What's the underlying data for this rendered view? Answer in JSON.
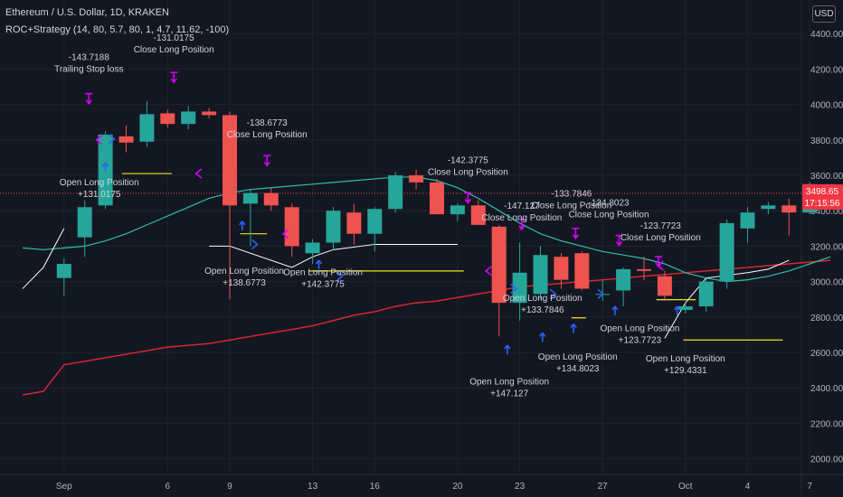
{
  "header": {
    "title": "Ethereum / U.S. Dollar, 1D, KRAKEN",
    "strategy": "ROC+Strategy (14, 80, 5.7, 80, 1, 4.7, 11.62, -100)",
    "currency_button": "USD"
  },
  "price_tags": {
    "last_price": "3498.65",
    "countdown": "17:15:56"
  },
  "colors": {
    "background": "#131722",
    "grid": "#1e222d",
    "text": "#b2b5be",
    "up": "#26a69a",
    "down": "#ef5350",
    "sma_long": "#e0282f",
    "sma_short": "#2bc0a8",
    "stop_line": "#ffffff",
    "level_line": "#f1e11c",
    "buy_arrow": "#2962ff",
    "sell_arrow": "#d500f9",
    "current_price": "#f23645"
  },
  "chart_data": {
    "type": "candlestick",
    "y_axis": {
      "ticks": [
        2000,
        2200,
        2400,
        2600,
        2800,
        3000,
        3200,
        3400,
        3600,
        3800,
        4000,
        4200,
        4400
      ],
      "tick_labels": [
        "2000.00",
        "2200.00",
        "2400.00",
        "2600.00",
        "2800.00",
        "3000.00",
        "3200.00",
        "3400.00",
        "3600.00",
        "3800.00",
        "4000.00",
        "4200.00",
        "4400.00"
      ],
      "ylim": [
        1930,
        4520
      ]
    },
    "x_axis": {
      "tick_labels": [
        {
          "label": "Sep",
          "index": 0
        },
        {
          "label": "6",
          "index": 5
        },
        {
          "label": "9",
          "index": 8
        },
        {
          "label": "13",
          "index": 12
        },
        {
          "label": "16",
          "index": 15
        },
        {
          "label": "20",
          "index": 19
        },
        {
          "label": "23",
          "index": 22
        },
        {
          "label": "27",
          "index": 26
        },
        {
          "label": "Oct",
          "index": 30
        },
        {
          "label": "4",
          "index": 33
        },
        {
          "label": "7",
          "index": 36
        }
      ],
      "first_index": -2,
      "last_index": 37
    },
    "candles": [
      {
        "o": 3020,
        "h": 3130,
        "l": 2920,
        "c": 3100
      },
      {
        "o": 3250,
        "h": 3460,
        "l": 3140,
        "c": 3420
      },
      {
        "o": 3430,
        "h": 3850,
        "l": 3410,
        "c": 3830
      },
      {
        "o": 3820,
        "h": 3880,
        "l": 3730,
        "c": 3785
      },
      {
        "o": 3790,
        "h": 4020,
        "l": 3760,
        "c": 3945
      },
      {
        "o": 3950,
        "h": 3970,
        "l": 3870,
        "c": 3890
      },
      {
        "o": 3890,
        "h": 3990,
        "l": 3860,
        "c": 3960
      },
      {
        "o": 3960,
        "h": 3980,
        "l": 3920,
        "c": 3940
      },
      {
        "o": 3940,
        "h": 3960,
        "l": 2900,
        "c": 3430
      },
      {
        "o": 3440,
        "h": 3520,
        "l": 3200,
        "c": 3500
      },
      {
        "o": 3500,
        "h": 3530,
        "l": 3400,
        "c": 3430
      },
      {
        "o": 3420,
        "h": 3440,
        "l": 3140,
        "c": 3200
      },
      {
        "o": 3160,
        "h": 3240,
        "l": 3100,
        "c": 3220
      },
      {
        "o": 3220,
        "h": 3420,
        "l": 3180,
        "c": 3400
      },
      {
        "o": 3390,
        "h": 3440,
        "l": 3210,
        "c": 3270
      },
      {
        "o": 3270,
        "h": 3420,
        "l": 3170,
        "c": 3410
      },
      {
        "o": 3410,
        "h": 3620,
        "l": 3390,
        "c": 3600
      },
      {
        "o": 3600,
        "h": 3630,
        "l": 3520,
        "c": 3560
      },
      {
        "o": 3560,
        "h": 3580,
        "l": 3380,
        "c": 3380
      },
      {
        "o": 3380,
        "h": 3440,
        "l": 3340,
        "c": 3430
      },
      {
        "o": 3430,
        "h": 3460,
        "l": 3320,
        "c": 3320
      },
      {
        "o": 3310,
        "h": 3320,
        "l": 2690,
        "c": 2880
      },
      {
        "o": 2880,
        "h": 3220,
        "l": 2780,
        "c": 3050
      },
      {
        "o": 2930,
        "h": 3200,
        "l": 2900,
        "c": 3150
      },
      {
        "o": 3140,
        "h": 3160,
        "l": 2960,
        "c": 3010
      },
      {
        "o": 3160,
        "h": 3170,
        "l": 2950,
        "c": 2960
      },
      {
        "o": 2930,
        "h": 3010,
        "l": 2890,
        "c": 2930
      },
      {
        "o": 2950,
        "h": 3080,
        "l": 2860,
        "c": 3070
      },
      {
        "o": 3070,
        "h": 3140,
        "l": 3010,
        "c": 3060
      },
      {
        "o": 3030,
        "h": 3060,
        "l": 2890,
        "c": 2920
      },
      {
        "o": 2840,
        "h": 2880,
        "l": 2820,
        "c": 2860
      },
      {
        "o": 2860,
        "h": 3020,
        "l": 2830,
        "c": 3000
      },
      {
        "o": 3000,
        "h": 3350,
        "l": 2960,
        "c": 3330
      },
      {
        "o": 3300,
        "h": 3420,
        "l": 3220,
        "c": 3390
      },
      {
        "o": 3410,
        "h": 3450,
        "l": 3380,
        "c": 3430
      },
      {
        "o": 3430,
        "h": 3470,
        "l": 3260,
        "c": 3390
      },
      {
        "o": 3390,
        "h": 3560,
        "l": 3380,
        "c": 3550
      },
      {
        "o": 3530,
        "h": 3540,
        "l": 3490,
        "c": 3500
      }
    ],
    "moving_average_short": [
      3190,
      3200,
      3230,
      3270,
      3320,
      3370,
      3420,
      3470,
      3500,
      3520,
      3530,
      3540,
      3550,
      3560,
      3570,
      3580,
      3590,
      3590,
      3570,
      3530,
      3470,
      3400,
      3330,
      3270,
      3230,
      3200,
      3170,
      3150,
      3130,
      3100,
      3050,
      3020,
      3000,
      3010,
      3030,
      3060,
      3100,
      3140
    ],
    "moving_average_long": [
      2530,
      2550,
      2570,
      2590,
      2610,
      2630,
      2640,
      2650,
      2670,
      2690,
      2710,
      2730,
      2750,
      2780,
      2810,
      2830,
      2860,
      2880,
      2890,
      2910,
      2930,
      2950,
      2970,
      2980,
      2990,
      3000,
      3010,
      3020,
      3030,
      3040,
      3050,
      3060,
      3070,
      3080,
      3090,
      3100,
      3110,
      3120
    ],
    "trailing_stop": [
      {
        "i": -2,
        "y": 2960
      },
      {
        "i": -1,
        "y": 3080
      },
      {
        "i": 0,
        "y": 3300
      },
      {
        "i": 7,
        "y": 3200
      },
      {
        "i": 8,
        "y": 3200
      },
      {
        "i": 11,
        "y": 3080
      },
      {
        "i": 12,
        "y": 3140
      },
      {
        "i": 13,
        "y": 3180
      },
      {
        "i": 15,
        "y": 3210
      },
      {
        "i": 19,
        "y": 3210
      },
      {
        "i": 29,
        "y": 2680
      },
      {
        "i": 30,
        "y": 2880
      },
      {
        "i": 31,
        "y": 3020
      },
      {
        "i": 33,
        "y": 3050
      },
      {
        "i": 34,
        "y": 3070
      },
      {
        "i": 35,
        "y": 3120
      }
    ],
    "level_lines": [
      {
        "from": 2.8,
        "to": 5.2,
        "y": 3610
      },
      {
        "from": 8.5,
        "to": 9.8,
        "y": 3270
      },
      {
        "from": 11.8,
        "to": 19.3,
        "y": 3060
      },
      {
        "from": 24.5,
        "to": 25.2,
        "y": 2795
      },
      {
        "from": 28.6,
        "to": 30.5,
        "y": 2898
      },
      {
        "from": 29.9,
        "to": 34.7,
        "y": 2670
      }
    ],
    "current_price": 3498.65,
    "buy_arrows": [
      {
        "i": 2,
        "y": 3640
      },
      {
        "i": 8.6,
        "y": 3310
      },
      {
        "i": 12.3,
        "y": 3090
      },
      {
        "i": 21.4,
        "y": 2610
      },
      {
        "i": 23.1,
        "y": 2680
      },
      {
        "i": 24.6,
        "y": 2730
      },
      {
        "i": 26.6,
        "y": 2830
      },
      {
        "i": 29.6,
        "y": 2830
      }
    ],
    "sell_arrows": [
      {
        "i": 1.2,
        "y": 4030
      },
      {
        "i": 5.3,
        "y": 4150
      },
      {
        "i": 9.8,
        "y": 3680
      },
      {
        "i": 19.5,
        "y": 3470
      },
      {
        "i": 22.1,
        "y": 3320
      },
      {
        "i": 24.7,
        "y": 3270
      },
      {
        "i": 26.8,
        "y": 3230
      },
      {
        "i": 28.7,
        "y": 3110
      }
    ],
    "entry_markers": [
      {
        "i": 2.3,
        "y": 3805
      },
      {
        "i": 9.2,
        "y": 3210
      },
      {
        "i": 13.3,
        "y": 3030
      },
      {
        "i": 21.7,
        "y": 2960
      },
      {
        "i": 23.6,
        "y": 2930
      },
      {
        "i": 25.9,
        "y": 2930
      }
    ],
    "exit_markers": [
      {
        "i": 1.7,
        "y": 3800
      },
      {
        "i": 6.5,
        "y": 3610
      },
      {
        "i": 10.7,
        "y": 3270
      },
      {
        "i": 20.5,
        "y": 3060
      },
      {
        "i": 28.8,
        "y": 3090
      }
    ],
    "annotations": [
      {
        "i": 1.2,
        "y": 4250,
        "lines": [
          "-143.7188",
          "Trailing Stop loss"
        ]
      },
      {
        "i": 5.3,
        "y": 4360,
        "lines": [
          "-131.0175",
          "Close Long Position"
        ]
      },
      {
        "i": 1.7,
        "y": 3545,
        "lines": [
          "Open Long Position",
          "+131.0175"
        ]
      },
      {
        "i": 9.8,
        "y": 3880,
        "lines": [
          "-138.6773",
          "Close Long Position"
        ]
      },
      {
        "i": 8.7,
        "y": 3045,
        "lines": [
          "Open Long Position",
          "+138.6773"
        ]
      },
      {
        "i": 12.5,
        "y": 3035,
        "lines": [
          "Open Long Position",
          "+142.3775"
        ]
      },
      {
        "i": 19.5,
        "y": 3670,
        "lines": [
          "-142.3775",
          "Close Long Position"
        ]
      },
      {
        "i": 21.5,
        "y": 2420,
        "lines": [
          "Open Long Position",
          "+147.127"
        ]
      },
      {
        "i": 22.1,
        "y": 3410,
        "lines": [
          "-147.127",
          "Close Long Position"
        ]
      },
      {
        "i": 23.1,
        "y": 2890,
        "lines": [
          "Open Long Position",
          "+133.7846"
        ]
      },
      {
        "i": 24.5,
        "y": 3480,
        "lines": [
          "-133.7846",
          "Close Long Position"
        ]
      },
      {
        "i": 24.8,
        "y": 2560,
        "lines": [
          "Open Long Position",
          "+134.8023"
        ]
      },
      {
        "i": 26.3,
        "y": 3430,
        "lines": [
          "-134.8023",
          "Close Long Position"
        ]
      },
      {
        "i": 27.8,
        "y": 2720,
        "lines": [
          "Open Long Position",
          "+123.7723"
        ]
      },
      {
        "i": 28.8,
        "y": 3300,
        "lines": [
          "-123.7723",
          "Close Long Position"
        ]
      },
      {
        "i": 30.0,
        "y": 2550,
        "lines": [
          "Open Long Position",
          "+129.4331"
        ]
      }
    ]
  }
}
